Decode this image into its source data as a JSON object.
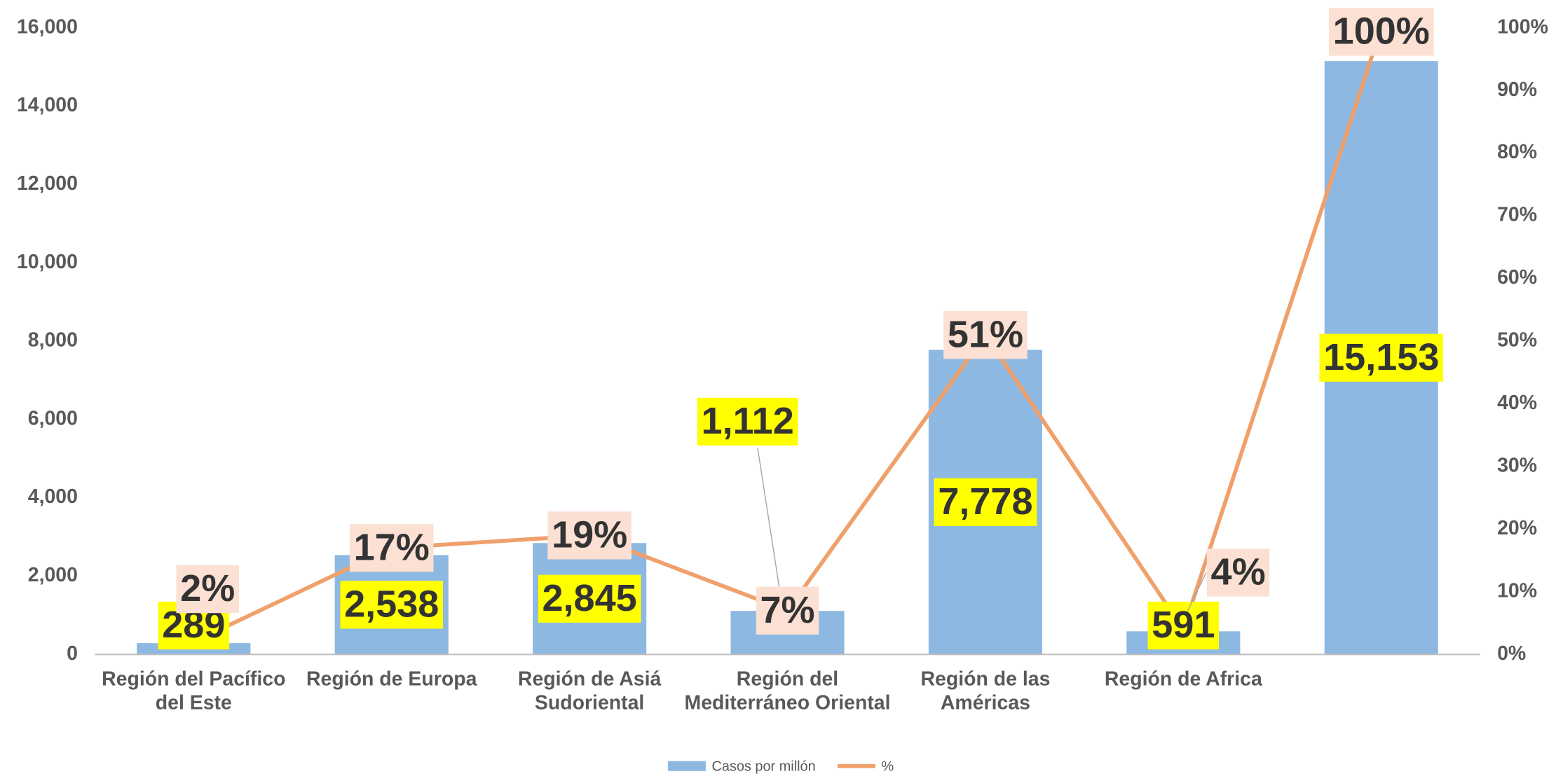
{
  "chart_data": {
    "type": "bar_line",
    "categories": [
      "Región del Pacífico del Este",
      "Región de Europa",
      "Región de Asiá Sudoriental",
      "Región del Mediterráneo Oriental",
      "Región de las Américas",
      "Región de Africa",
      null
    ],
    "series": [
      {
        "name": "Casos por millón",
        "type": "bar",
        "color": "#8db8e2",
        "values": [
          289,
          2538,
          2845,
          1112,
          7778,
          591,
          15153
        ],
        "value_labels": [
          "289",
          "2,538",
          "2,845",
          "1,112",
          "7,778",
          "591",
          "15,153"
        ]
      },
      {
        "name": "%",
        "type": "line",
        "axis": "y2",
        "color": "#f0a06b",
        "values": [
          2,
          17,
          19,
          7,
          51,
          4,
          100
        ],
        "value_labels": [
          "2%",
          "17%",
          "19%",
          "7%",
          "51%",
          "4%",
          "100%"
        ]
      }
    ],
    "ylim": [
      0,
      16000
    ],
    "yticks": [
      {
        "value": 0,
        "label": "0"
      },
      {
        "value": 2000,
        "label": "2,000"
      },
      {
        "value": 4000,
        "label": "4,000"
      },
      {
        "value": 6000,
        "label": "6,000"
      },
      {
        "value": 8000,
        "label": "8,000"
      },
      {
        "value": 10000,
        "label": "10,000"
      },
      {
        "value": 12000,
        "label": "12,000"
      },
      {
        "value": 14000,
        "label": "14,000"
      },
      {
        "value": 16000,
        "label": "16,000"
      }
    ],
    "y2lim": [
      0,
      100
    ],
    "y2ticks": [
      {
        "value": 0,
        "label": "0%"
      },
      {
        "value": 10,
        "label": "10%"
      },
      {
        "value": 20,
        "label": "20%"
      },
      {
        "value": 30,
        "label": "30%"
      },
      {
        "value": 40,
        "label": "40%"
      },
      {
        "value": 50,
        "label": "50%"
      },
      {
        "value": 60,
        "label": "60%"
      },
      {
        "value": 70,
        "label": "70%"
      },
      {
        "value": 80,
        "label": "80%"
      },
      {
        "value": 90,
        "label": "90%"
      },
      {
        "value": 100,
        "label": "100%"
      }
    ],
    "grid": false,
    "legend": "bottom"
  }
}
